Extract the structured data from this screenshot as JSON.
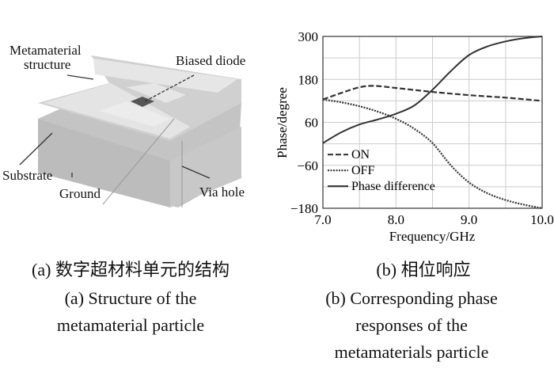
{
  "diagram": {
    "labels": {
      "metamaterial": "Metamaterial",
      "structure": "structure",
      "biased_diode": "Biased diode",
      "substrate": "Substrate",
      "ground": "Ground",
      "via_hole": "Via hole"
    }
  },
  "captions": {
    "a_cn": "(a) 数字超材料单元的结构",
    "a_en1": "(a) Structure of the",
    "a_en2": "metamaterial particle",
    "b_cn": "(b) 相位响应",
    "b_en1": "(b) Corresponding phase",
    "b_en2": "responses of the",
    "b_en3": "metamaterials particle"
  },
  "chart_data": {
    "type": "line",
    "xlabel": "Frequency/GHz",
    "ylabel": "Phase/degree",
    "xlim": [
      7.0,
      10.0
    ],
    "ylim": [
      -180,
      300
    ],
    "xticks": [
      "7.0",
      "8.0",
      "9.0",
      "10.0"
    ],
    "yticks": [
      "300",
      "180",
      "60",
      "−60",
      "−180"
    ],
    "grid": true,
    "legend_position": "bottom-left",
    "series": [
      {
        "name": "ON",
        "style": "dashed",
        "x": [
          7.0,
          7.25,
          7.5,
          7.7,
          8.0,
          8.5,
          9.0,
          9.5,
          10.0
        ],
        "y": [
          124,
          142,
          158,
          162,
          156,
          145,
          136,
          129,
          120
        ]
      },
      {
        "name": "OFF",
        "style": "dotted",
        "x": [
          7.0,
          7.25,
          7.5,
          7.75,
          8.0,
          8.25,
          8.5,
          8.75,
          9.0,
          9.25,
          9.5,
          9.75,
          10.0
        ],
        "y": [
          124,
          116,
          105,
          90,
          70,
          42,
          2,
          -60,
          -108,
          -138,
          -157,
          -170,
          -180
        ]
      },
      {
        "name": "Phase difference",
        "style": "solid",
        "x": [
          7.0,
          7.25,
          7.5,
          7.75,
          8.0,
          8.25,
          8.5,
          8.75,
          9.0,
          9.25,
          9.5,
          9.75,
          10.0
        ],
        "y": [
          2,
          32,
          54,
          68,
          84,
          107,
          151,
          203,
          248,
          272,
          286,
          295,
          300
        ]
      }
    ]
  }
}
